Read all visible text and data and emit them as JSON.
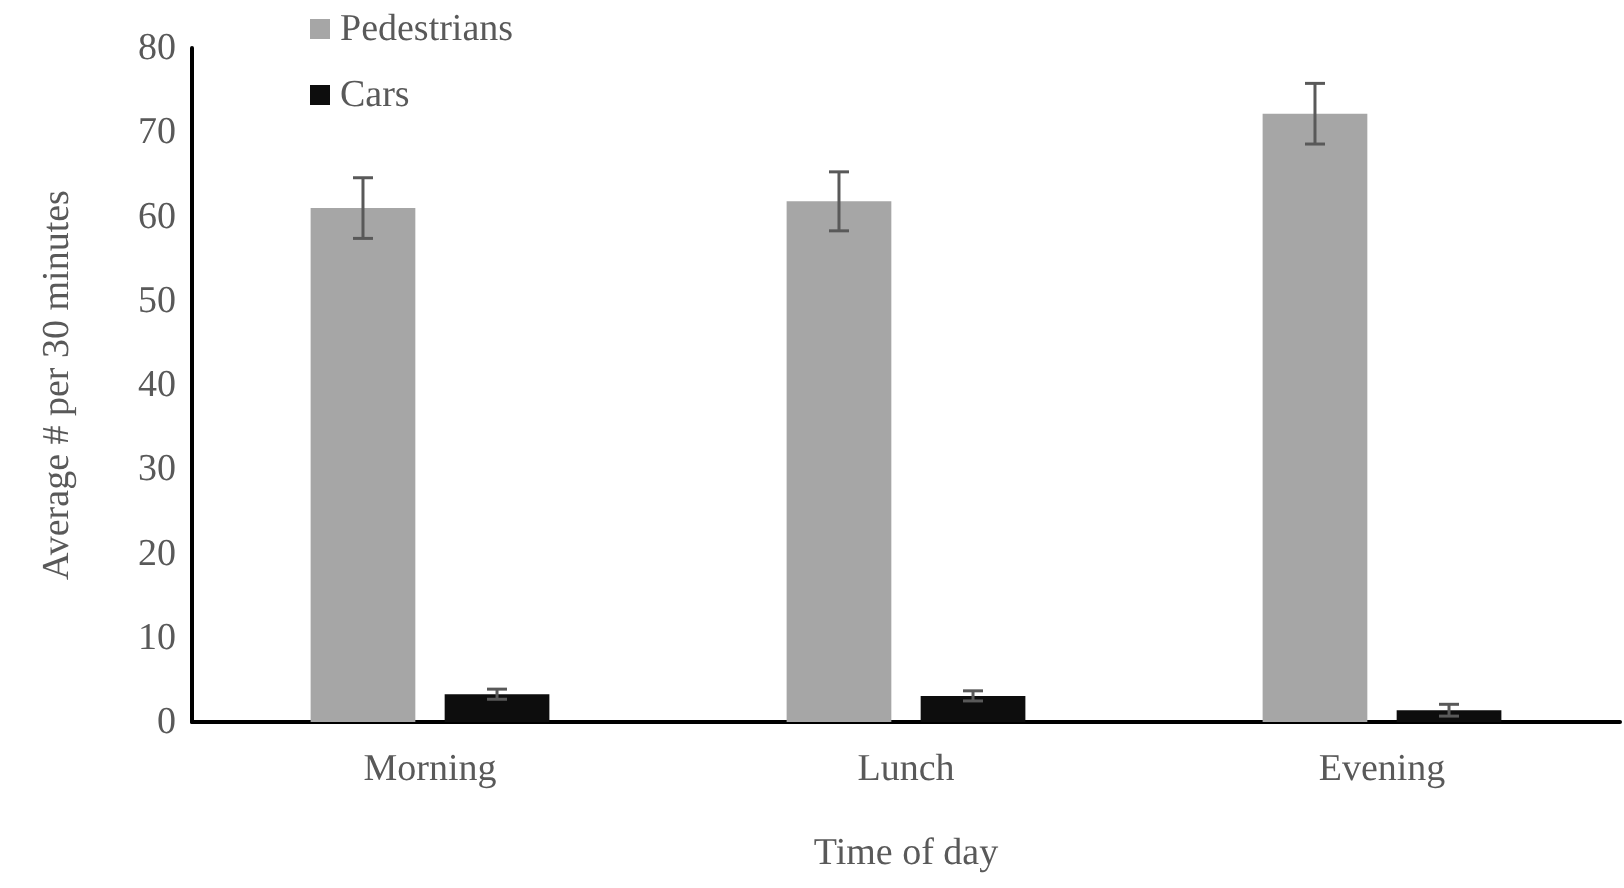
{
  "chart_data": {
    "type": "bar",
    "xlabel": "Time of day",
    "ylabel": "Average # per 30 minutes",
    "categories": [
      "Morning",
      "Lunch",
      "Evening"
    ],
    "series": [
      {
        "name": "Pedestrians",
        "color": "#a6a6a6",
        "values": [
          61.0,
          61.8,
          72.2
        ],
        "errors": [
          3.6,
          3.5,
          3.6
        ]
      },
      {
        "name": "Cars",
        "color": "#0d0d0d",
        "values": [
          3.3,
          3.1,
          1.4
        ],
        "errors": [
          0.6,
          0.6,
          0.7
        ]
      }
    ],
    "ylim": [
      0,
      80
    ],
    "yticks": [
      0,
      10,
      20,
      30,
      40,
      50,
      60,
      70,
      80
    ],
    "grid": false,
    "legend": "top left"
  }
}
